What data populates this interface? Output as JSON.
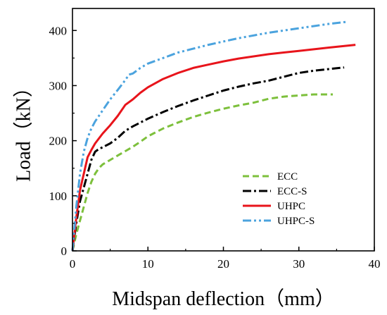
{
  "chart_data": {
    "type": "line",
    "xlabel": "Midspan deflection（mm）",
    "ylabel": "Load（kN）",
    "xlim": [
      0,
      40
    ],
    "ylim": [
      0,
      440
    ],
    "xticks": [
      0,
      10,
      20,
      30,
      40
    ],
    "yticks": [
      0,
      100,
      200,
      300,
      400
    ],
    "grid": false,
    "legend": "center-right",
    "series": [
      {
        "name": "ECC",
        "color": "#7dc03c",
        "dash": "dashed",
        "x": [
          0,
          0.5,
          1,
          1.5,
          2,
          2.5,
          3,
          3.5,
          4,
          5,
          6,
          7,
          8,
          9,
          10,
          12,
          14,
          16,
          18,
          20,
          22,
          24,
          26,
          28,
          30,
          32,
          34.5
        ],
        "y": [
          0,
          30,
          55,
          80,
          105,
          125,
          140,
          150,
          157,
          165,
          173,
          181,
          189,
          198,
          208,
          222,
          233,
          243,
          251,
          258,
          264,
          269,
          276,
          280,
          282,
          284,
          284
        ]
      },
      {
        "name": "ECC-S",
        "color": "#000000",
        "dash": "dashdot",
        "x": [
          0,
          0.5,
          1,
          1.5,
          2,
          2.5,
          3,
          3.5,
          4,
          5,
          6,
          7,
          8,
          10,
          12,
          14,
          16,
          18,
          20,
          22,
          24,
          26,
          28,
          30,
          32,
          34,
          36
        ],
        "y": [
          0,
          50,
          90,
          115,
          140,
          165,
          180,
          185,
          188,
          195,
          205,
          218,
          226,
          240,
          252,
          263,
          273,
          282,
          291,
          298,
          304,
          309,
          316,
          323,
          327,
          330,
          333
        ]
      },
      {
        "name": "UHPC",
        "color": "#e8141b",
        "dash": "solid",
        "x": [
          0,
          0.5,
          1,
          1.5,
          2,
          2.5,
          3,
          4,
          5,
          6,
          7,
          8,
          9,
          10,
          12,
          14,
          16,
          18,
          20,
          22,
          24,
          26,
          28,
          30,
          32,
          34,
          37.5
        ],
        "y": [
          0,
          60,
          110,
          140,
          170,
          183,
          195,
          213,
          228,
          245,
          265,
          275,
          287,
          297,
          312,
          323,
          332,
          338,
          344,
          349,
          353,
          357,
          360,
          363,
          366,
          369,
          374
        ]
      },
      {
        "name": "UHPC-S",
        "color": "#4ba3de",
        "dash": "dashdotdot",
        "x": [
          0,
          0.5,
          1,
          1.5,
          2,
          2.5,
          3,
          4,
          5,
          6,
          7,
          7.5,
          8,
          9,
          10,
          12,
          14,
          16,
          18,
          20,
          22,
          24,
          26,
          28,
          30,
          32,
          34,
          36.5
        ],
        "y": [
          0,
          80,
          140,
          180,
          205,
          222,
          235,
          255,
          275,
          292,
          310,
          320,
          322,
          332,
          340,
          350,
          360,
          367,
          374,
          380,
          386,
          391,
          396,
          400,
          404,
          408,
          412,
          416
        ]
      }
    ]
  }
}
